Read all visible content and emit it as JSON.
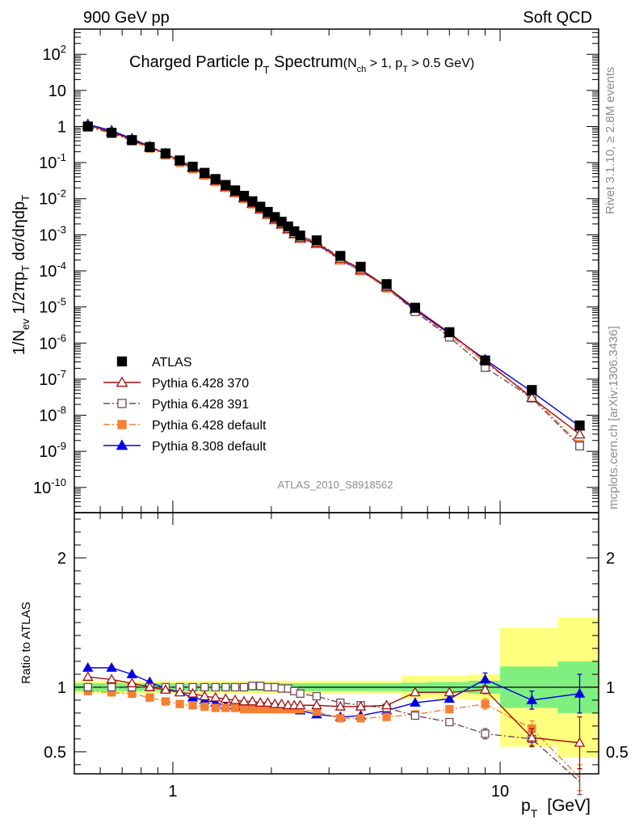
{
  "header": {
    "left": "900 GeV pp",
    "right": "Soft QCD"
  },
  "side_text": {
    "rivet": "Rivet 3.1.10, ≥ 2.8M events",
    "mcplots": "mcplots.cern.ch [arXiv:1306.3436]"
  },
  "chart_data": {
    "type": "scatter",
    "title_main": "Charged Particle p",
    "title_main_sub": "T",
    "title_main_suffix": " Spectrum",
    "title_cond_1": "(N",
    "title_cond_1_sub": "ch",
    "title_cond_2": " > 1, p",
    "title_cond_2_sub": "T",
    "title_cond_3": " > 0.5 GeV)",
    "analysis_id": "ATLAS_2010_S8918562",
    "xlabel": "p",
    "xlabel_sub": "T",
    "xlabel_unit": "[GeV]",
    "ylabel_top": "1/N_ev 1/2πp_T dσ/dηdp_T",
    "ylabel_ratio": "Ratio to ATLAS",
    "xscale": "log",
    "xlim": [
      0.5,
      20
    ],
    "ylim_top": [
      2e-11,
      500
    ],
    "ylim_ratio": [
      0.33,
      2.35
    ],
    "x_ticks": [
      "1",
      "10"
    ],
    "y_ticks_top": [
      {
        "base": "10",
        "exp": "2"
      },
      {
        "base": "10",
        "exp": ""
      },
      {
        "base": "1",
        "exp": ""
      },
      {
        "base": "10",
        "exp": "-1"
      },
      {
        "base": "10",
        "exp": "-2"
      },
      {
        "base": "10",
        "exp": "-3"
      },
      {
        "base": "10",
        "exp": "-4"
      },
      {
        "base": "10",
        "exp": "-5"
      },
      {
        "base": "10",
        "exp": "-6"
      },
      {
        "base": "10",
        "exp": "-7"
      },
      {
        "base": "10",
        "exp": "-8"
      },
      {
        "base": "10",
        "exp": "-9"
      },
      {
        "base": "10",
        "exp": "-10"
      }
    ],
    "y_ticks_ratio": [
      "0.5",
      "1",
      "2"
    ],
    "legend_position": "lower-left",
    "x": [
      0.55,
      0.65,
      0.75,
      0.85,
      0.95,
      1.05,
      1.15,
      1.25,
      1.35,
      1.45,
      1.55,
      1.65,
      1.75,
      1.85,
      1.95,
      2.05,
      2.15,
      2.25,
      2.35,
      2.45,
      2.75,
      3.25,
      3.75,
      4.5,
      5.5,
      7.0,
      9.0,
      12.5,
      17.5
    ],
    "ref_values": [
      1.0,
      0.67,
      0.42,
      0.27,
      0.18,
      0.115,
      0.077,
      0.052,
      0.035,
      0.024,
      0.017,
      0.012,
      0.0085,
      0.006,
      0.0043,
      0.0031,
      0.0023,
      0.0017,
      0.00125,
      0.00095,
      0.0007,
      0.00026,
      0.00013,
      4.3e-05,
      9.5e-06,
      2e-06,
      3.3e-07,
      5e-08,
      5.2e-09
    ],
    "series": [
      {
        "name": "ATLAS",
        "color": "#000000",
        "marker": "square-filled",
        "line": "none",
        "ratio": [
          1,
          1,
          1,
          1,
          1,
          1,
          1,
          1,
          1,
          1,
          1,
          1,
          1,
          1,
          1,
          1,
          1,
          1,
          1,
          1,
          1,
          1,
          1,
          1,
          1,
          1,
          1,
          1,
          1
        ]
      },
      {
        "name": "Pythia 6.428 370",
        "color": "#a01010",
        "marker": "triangle-open",
        "line": "solid",
        "ratio": [
          1.08,
          1.06,
          1.03,
          1.0,
          0.98,
          0.96,
          0.95,
          0.93,
          0.92,
          0.91,
          0.9,
          0.89,
          0.89,
          0.88,
          0.88,
          0.87,
          0.87,
          0.86,
          0.86,
          0.86,
          0.86,
          0.85,
          0.85,
          0.86,
          0.96,
          0.96,
          0.98,
          0.61,
          0.57
        ],
        "ratio_err": [
          0,
          0,
          0,
          0,
          0,
          0,
          0,
          0,
          0,
          0,
          0,
          0,
          0,
          0,
          0,
          0,
          0,
          0,
          0,
          0,
          0,
          0,
          0,
          0,
          0,
          0,
          0.03,
          0.07,
          0.2
        ]
      },
      {
        "name": "Pythia 6.428 391",
        "color": "#6e4a58",
        "marker": "square-open",
        "line": "dashdot",
        "ratio": [
          1.0,
          1.0,
          1.0,
          1.0,
          1.0,
          1.0,
          1.0,
          1.0,
          1.0,
          1.0,
          1.0,
          1.0,
          1.01,
          1.01,
          1.0,
          1.0,
          0.99,
          0.99,
          0.97,
          0.95,
          0.93,
          0.88,
          0.86,
          0.84,
          0.78,
          0.73,
          0.64,
          0.6,
          0.27
        ],
        "ratio_err": [
          0,
          0,
          0,
          0,
          0,
          0,
          0,
          0,
          0,
          0,
          0,
          0,
          0,
          0,
          0,
          0,
          0,
          0,
          0,
          0,
          0,
          0,
          0,
          0,
          0,
          0.02,
          0.04,
          0.05,
          0.1
        ]
      },
      {
        "name": "Pythia 6.428 default",
        "color": "#f57f32",
        "marker": "square-filled",
        "line": "dashdot",
        "ratio": [
          0.97,
          0.96,
          0.95,
          0.92,
          0.89,
          0.87,
          0.86,
          0.85,
          0.84,
          0.84,
          0.84,
          0.83,
          0.83,
          0.83,
          0.83,
          0.83,
          0.83,
          0.83,
          0.83,
          0.83,
          0.81,
          0.76,
          0.76,
          0.77,
          0.79,
          0.83,
          0.87,
          0.68,
          0.3
        ],
        "ratio_err": [
          0,
          0,
          0,
          0,
          0,
          0,
          0,
          0,
          0,
          0,
          0,
          0,
          0,
          0,
          0,
          0,
          0,
          0,
          0,
          0,
          0,
          0,
          0,
          0,
          0,
          0,
          0.04,
          0.06,
          0.1
        ]
      },
      {
        "name": "Pythia 8.308 default",
        "color": "#0000e6",
        "marker": "triangle-filled",
        "line": "solid",
        "ratio": [
          1.15,
          1.15,
          1.1,
          1.04,
          0.99,
          0.96,
          0.92,
          0.9,
          0.88,
          0.86,
          0.86,
          0.85,
          0.85,
          0.84,
          0.84,
          0.83,
          0.83,
          0.83,
          0.83,
          0.82,
          0.79,
          0.77,
          0.78,
          0.82,
          0.88,
          0.91,
          1.06,
          0.9,
          0.95
        ],
        "ratio_err": [
          0,
          0,
          0,
          0,
          0,
          0,
          0,
          0,
          0,
          0,
          0,
          0,
          0,
          0,
          0,
          0,
          0,
          0,
          0,
          0,
          0,
          0,
          0,
          0,
          0,
          0,
          0.05,
          0.07,
          0.15
        ]
      }
    ],
    "ref_bands": {
      "x_edges": [
        0.5,
        5.0,
        6.0,
        8.0,
        10.0,
        15.0,
        20.0
      ],
      "green": [
        0.03,
        0.035,
        0.04,
        0.05,
        0.16,
        0.2
      ],
      "yellow": [
        0.05,
        0.09,
        0.09,
        0.1,
        0.46,
        0.54
      ]
    }
  }
}
